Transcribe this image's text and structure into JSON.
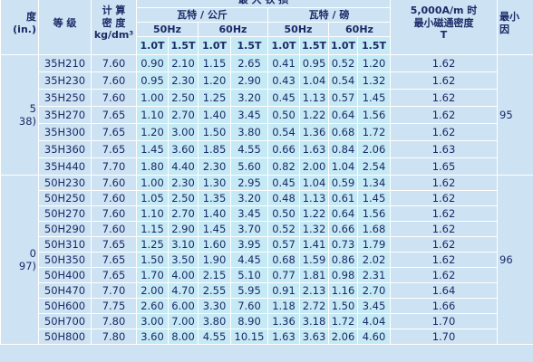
{
  "header": {
    "thickness": [
      "度",
      "(in.)"
    ],
    "grade": "等 级",
    "density": [
      "计 算",
      "密 度",
      "kg/dm³"
    ],
    "loss": "最 大 铁 损",
    "per_kg": "瓦特 / 公斤",
    "per_lb": "瓦特 / 磅",
    "freqs": [
      "50Hz",
      "60Hz",
      "50Hz",
      "60Hz"
    ],
    "inductions": [
      "1.0T",
      "1.5T",
      "1.0T",
      "1.5T",
      "1.0T",
      "1.5T",
      "1.0T",
      "1.5T"
    ],
    "flux": [
      "5,000A/m 时",
      "最小磁通密度",
      "T"
    ],
    "last": [
      "最小",
      "因"
    ]
  },
  "groups": [
    {
      "thickness": [
        "5",
        "38)"
      ],
      "last": "95",
      "rows": [
        [
          "35H210",
          "7.60",
          "0.90",
          "2.10",
          "1.15",
          "2.65",
          "0.41",
          "0.95",
          "0.52",
          "1.20",
          "1.62"
        ],
        [
          "35H230",
          "7.60",
          "0.95",
          "2.30",
          "1.20",
          "2.90",
          "0.43",
          "1.04",
          "0.54",
          "1.32",
          "1.62"
        ],
        [
          "35H250",
          "7.60",
          "1.00",
          "2.50",
          "1.25",
          "3.20",
          "0.45",
          "1.13",
          "0.57",
          "1.45",
          "1.62"
        ],
        [
          "35H270",
          "7.65",
          "1.10",
          "2.70",
          "1.40",
          "3.45",
          "0.50",
          "1.22",
          "0.64",
          "1.56",
          "1.62"
        ],
        [
          "35H300",
          "7.65",
          "1.20",
          "3.00",
          "1.50",
          "3.80",
          "0.54",
          "1.36",
          "0.68",
          "1.72",
          "1.62"
        ],
        [
          "35H360",
          "7.65",
          "1.45",
          "3.60",
          "1.85",
          "4.55",
          "0.66",
          "1.63",
          "0.84",
          "2.06",
          "1.63"
        ],
        [
          "35H440",
          "7.70",
          "1.80",
          "4.40",
          "2.30",
          "5.60",
          "0.82",
          "2.00",
          "1.04",
          "2.54",
          "1.65"
        ]
      ]
    },
    {
      "thickness": [
        "0",
        "97)"
      ],
      "last": "96",
      "rows": [
        [
          "50H230",
          "7.60",
          "1.00",
          "2.30",
          "1.30",
          "2.95",
          "0.45",
          "1.04",
          "0.59",
          "1.34",
          "1.62"
        ],
        [
          "50H250",
          "7.60",
          "1.05",
          "2.50",
          "1.35",
          "3.20",
          "0.48",
          "1.13",
          "0.61",
          "1.45",
          "1.62"
        ],
        [
          "50H270",
          "7.60",
          "1.10",
          "2.70",
          "1.40",
          "3.45",
          "0.50",
          "1.22",
          "0.64",
          "1.56",
          "1.62"
        ],
        [
          "50H290",
          "7.60",
          "1.15",
          "2.90",
          "1.45",
          "3.70",
          "0.52",
          "1.32",
          "0.66",
          "1.68",
          "1.62"
        ],
        [
          "50H310",
          "7.65",
          "1.25",
          "3.10",
          "1.60",
          "3.95",
          "0.57",
          "1.41",
          "0.73",
          "1.79",
          "1.62"
        ],
        [
          "50H350",
          "7.65",
          "1.50",
          "3.50",
          "1.90",
          "4.45",
          "0.68",
          "1.59",
          "0.86",
          "2.02",
          "1.62"
        ],
        [
          "50H400",
          "7.65",
          "1.70",
          "4.00",
          "2.15",
          "5.10",
          "0.77",
          "1.81",
          "0.98",
          "2.31",
          "1.62"
        ],
        [
          "50H470",
          "7.70",
          "2.00",
          "4.70",
          "2.55",
          "5.95",
          "0.91",
          "2.13",
          "1.16",
          "2.70",
          "1.64"
        ],
        [
          "50H600",
          "7.75",
          "2.60",
          "6.00",
          "3.30",
          "7.60",
          "1.18",
          "2.72",
          "1.50",
          "3.45",
          "1.66"
        ],
        [
          "50H700",
          "7.80",
          "3.00",
          "7.00",
          "3.80",
          "8.90",
          "1.36",
          "3.18",
          "1.72",
          "4.04",
          "1.70"
        ],
        [
          "50H800",
          "7.80",
          "3.60",
          "8.00",
          "4.55",
          "10.15",
          "1.63",
          "3.63",
          "2.06",
          "4.60",
          "1.70"
        ]
      ]
    }
  ]
}
